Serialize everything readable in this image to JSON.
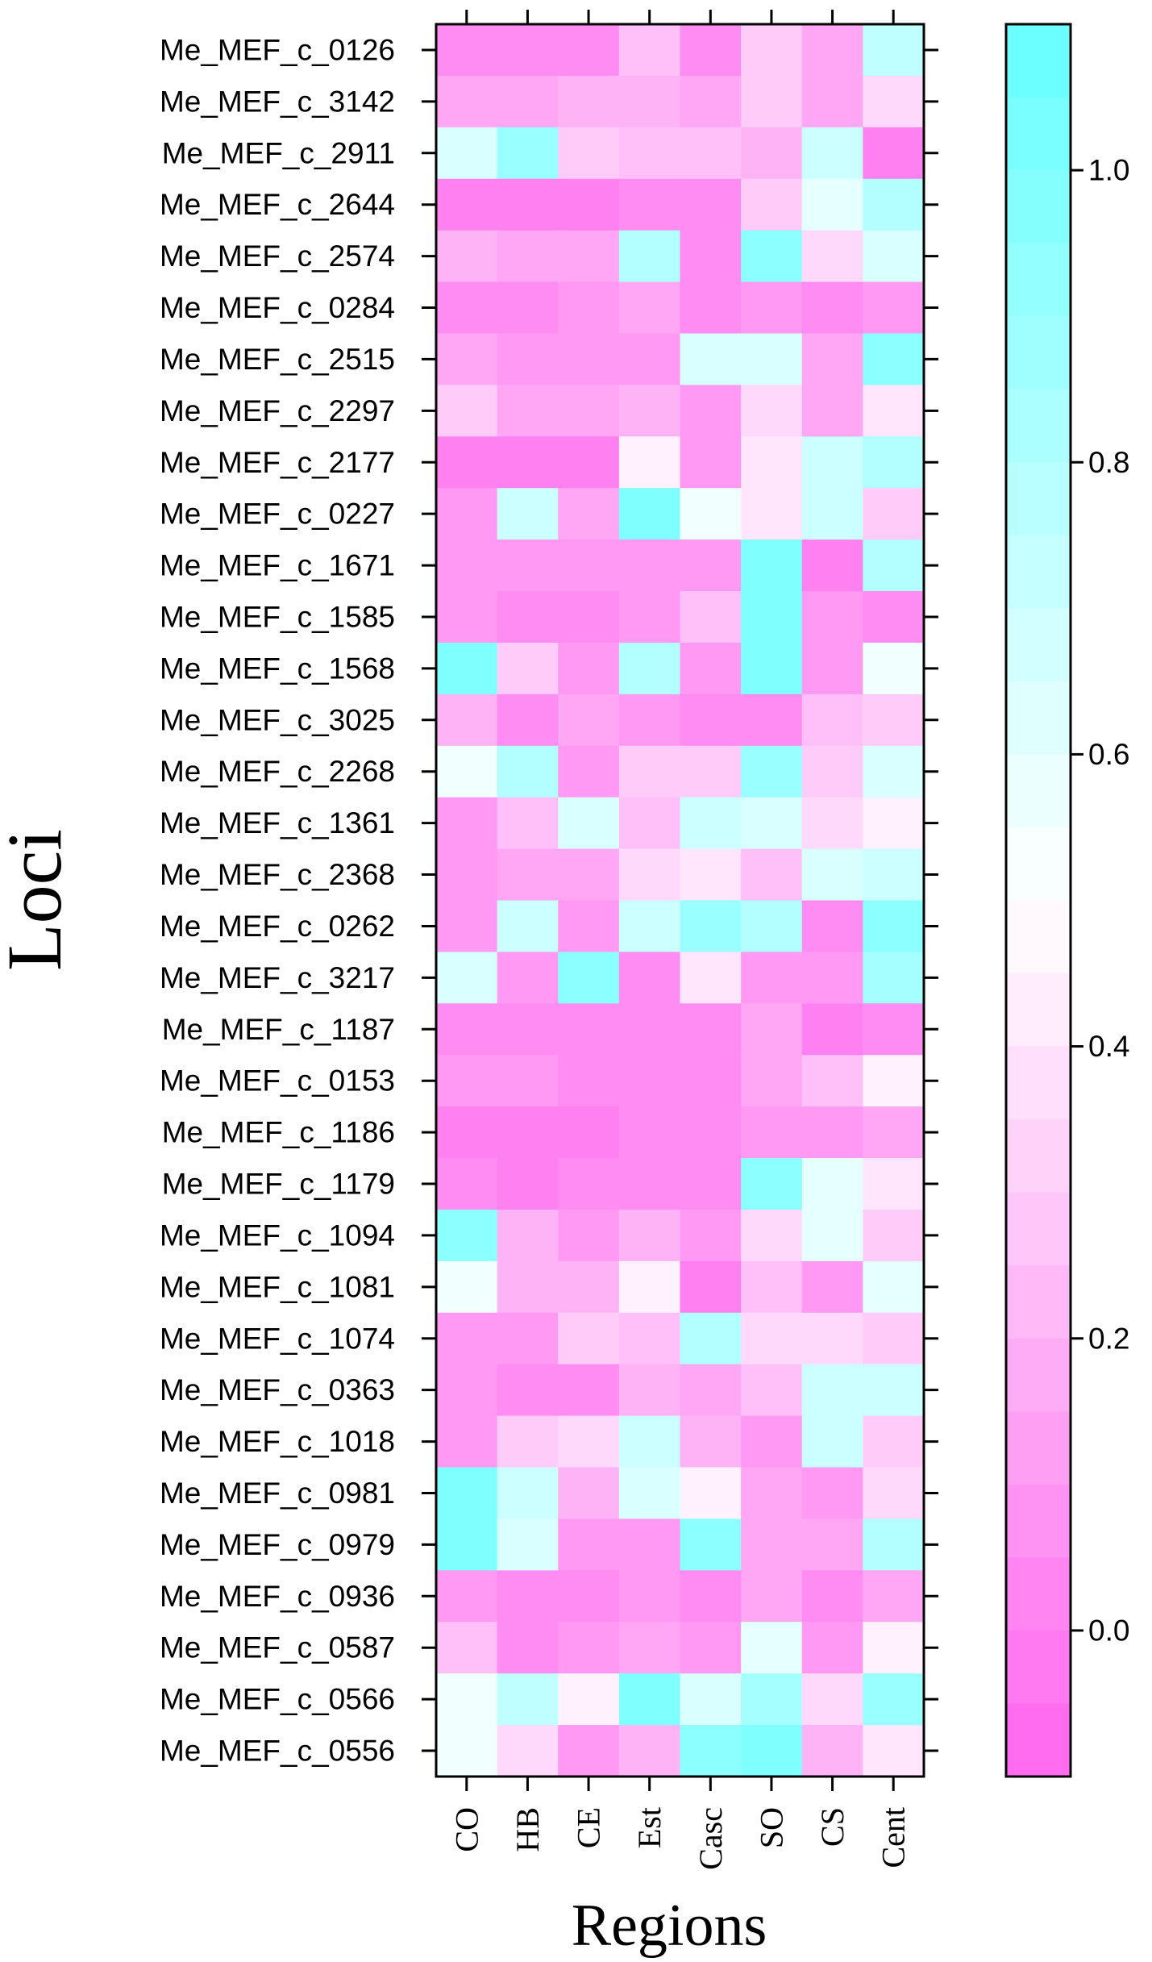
{
  "chart_data": {
    "type": "heatmap",
    "xlabel": "Regions",
    "ylabel": "Loci",
    "x_categories": [
      "CO",
      "HB",
      "CE",
      "Est",
      "Casc",
      "SO",
      "CS",
      "Cent"
    ],
    "y_categories": [
      "Me_MEF_c_0126",
      "Me_MEF_c_3142",
      "Me_MEF_c_2911",
      "Me_MEF_c_2644",
      "Me_MEF_c_2574",
      "Me_MEF_c_0284",
      "Me_MEF_c_2515",
      "Me_MEF_c_2297",
      "Me_MEF_c_2177",
      "Me_MEF_c_0227",
      "Me_MEF_c_1671",
      "Me_MEF_c_1585",
      "Me_MEF_c_1568",
      "Me_MEF_c_3025",
      "Me_MEF_c_2268",
      "Me_MEF_c_1361",
      "Me_MEF_c_2368",
      "Me_MEF_c_0262",
      "Me_MEF_c_3217",
      "Me_MEF_c_1187",
      "Me_MEF_c_0153",
      "Me_MEF_c_1186",
      "Me_MEF_c_1179",
      "Me_MEF_c_1094",
      "Me_MEF_c_1081",
      "Me_MEF_c_1074",
      "Me_MEF_c_0363",
      "Me_MEF_c_1018",
      "Me_MEF_c_0981",
      "Me_MEF_c_0979",
      "Me_MEF_c_0936",
      "Me_MEF_c_0587",
      "Me_MEF_c_0566",
      "Me_MEF_c_0556"
    ],
    "values": [
      [
        0.05,
        0.05,
        0.05,
        0.25,
        0.05,
        0.3,
        0.15,
        0.75
      ],
      [
        0.15,
        0.15,
        0.2,
        0.2,
        0.15,
        0.3,
        0.15,
        0.35
      ],
      [
        0.65,
        0.9,
        0.3,
        0.25,
        0.25,
        0.2,
        0.7,
        0.0
      ],
      [
        0.0,
        0.0,
        0.0,
        0.05,
        0.05,
        0.3,
        0.6,
        0.8
      ],
      [
        0.2,
        0.15,
        0.15,
        0.8,
        0.05,
        0.95,
        0.35,
        0.65
      ],
      [
        0.05,
        0.05,
        0.1,
        0.15,
        0.05,
        0.1,
        0.05,
        0.1
      ],
      [
        0.15,
        0.1,
        0.1,
        0.1,
        0.65,
        0.65,
        0.15,
        0.95
      ],
      [
        0.3,
        0.15,
        0.15,
        0.2,
        0.1,
        0.35,
        0.15,
        0.4
      ],
      [
        0.0,
        0.0,
        0.0,
        0.45,
        0.1,
        0.4,
        0.7,
        0.8
      ],
      [
        0.1,
        0.7,
        0.15,
        1.0,
        0.55,
        0.4,
        0.7,
        0.3
      ],
      [
        0.1,
        0.1,
        0.1,
        0.1,
        0.1,
        1.0,
        0.0,
        0.8
      ],
      [
        0.1,
        0.05,
        0.05,
        0.1,
        0.25,
        1.0,
        0.1,
        0.05
      ],
      [
        1.0,
        0.3,
        0.1,
        0.8,
        0.1,
        1.0,
        0.1,
        0.55
      ],
      [
        0.2,
        0.05,
        0.15,
        0.1,
        0.05,
        0.05,
        0.25,
        0.3
      ],
      [
        0.55,
        0.8,
        0.1,
        0.3,
        0.3,
        0.9,
        0.3,
        0.65
      ],
      [
        0.1,
        0.25,
        0.65,
        0.25,
        0.7,
        0.65,
        0.35,
        0.45
      ],
      [
        0.1,
        0.15,
        0.15,
        0.35,
        0.4,
        0.25,
        0.65,
        0.7
      ],
      [
        0.1,
        0.7,
        0.1,
        0.7,
        0.9,
        0.8,
        0.05,
        0.95
      ],
      [
        0.65,
        0.1,
        0.95,
        0.05,
        0.4,
        0.1,
        0.1,
        0.85
      ],
      [
        0.05,
        0.05,
        0.05,
        0.05,
        0.05,
        0.15,
        0.0,
        0.05
      ],
      [
        0.1,
        0.1,
        0.05,
        0.05,
        0.05,
        0.15,
        0.25,
        0.45
      ],
      [
        0.0,
        0.0,
        0.0,
        0.05,
        0.05,
        0.1,
        0.1,
        0.15
      ],
      [
        0.05,
        0.0,
        0.05,
        0.05,
        0.05,
        0.95,
        0.6,
        0.4
      ],
      [
        0.95,
        0.2,
        0.1,
        0.2,
        0.1,
        0.35,
        0.6,
        0.3
      ],
      [
        0.55,
        0.2,
        0.2,
        0.45,
        0.0,
        0.25,
        0.1,
        0.6
      ],
      [
        0.1,
        0.1,
        0.3,
        0.25,
        0.8,
        0.35,
        0.35,
        0.3
      ],
      [
        0.1,
        0.05,
        0.05,
        0.2,
        0.15,
        0.25,
        0.7,
        0.7
      ],
      [
        0.1,
        0.3,
        0.35,
        0.7,
        0.2,
        0.1,
        0.7,
        0.3
      ],
      [
        1.0,
        0.7,
        0.2,
        0.65,
        0.45,
        0.15,
        0.1,
        0.35
      ],
      [
        1.0,
        0.65,
        0.1,
        0.1,
        0.95,
        0.15,
        0.15,
        0.8
      ],
      [
        0.1,
        0.05,
        0.05,
        0.1,
        0.05,
        0.15,
        0.05,
        0.15
      ],
      [
        0.25,
        0.05,
        0.1,
        0.15,
        0.1,
        0.6,
        0.1,
        0.45
      ],
      [
        0.55,
        0.75,
        0.45,
        1.0,
        0.65,
        0.85,
        0.35,
        0.9
      ],
      [
        0.55,
        0.35,
        0.1,
        0.2,
        0.95,
        1.0,
        0.2,
        0.4
      ]
    ],
    "colorbar": {
      "min": -0.1,
      "max": 1.1,
      "ticks": [
        0.0,
        0.2,
        0.4,
        0.6,
        0.8,
        1.0
      ],
      "tick_labels": [
        "0.0",
        "0.2",
        "0.4",
        "0.6",
        "0.8",
        "1.0"
      ],
      "low_color": "#ff66ee",
      "mid_color": "#ffffff",
      "high_color": "#66ffff"
    },
    "grid": false
  }
}
